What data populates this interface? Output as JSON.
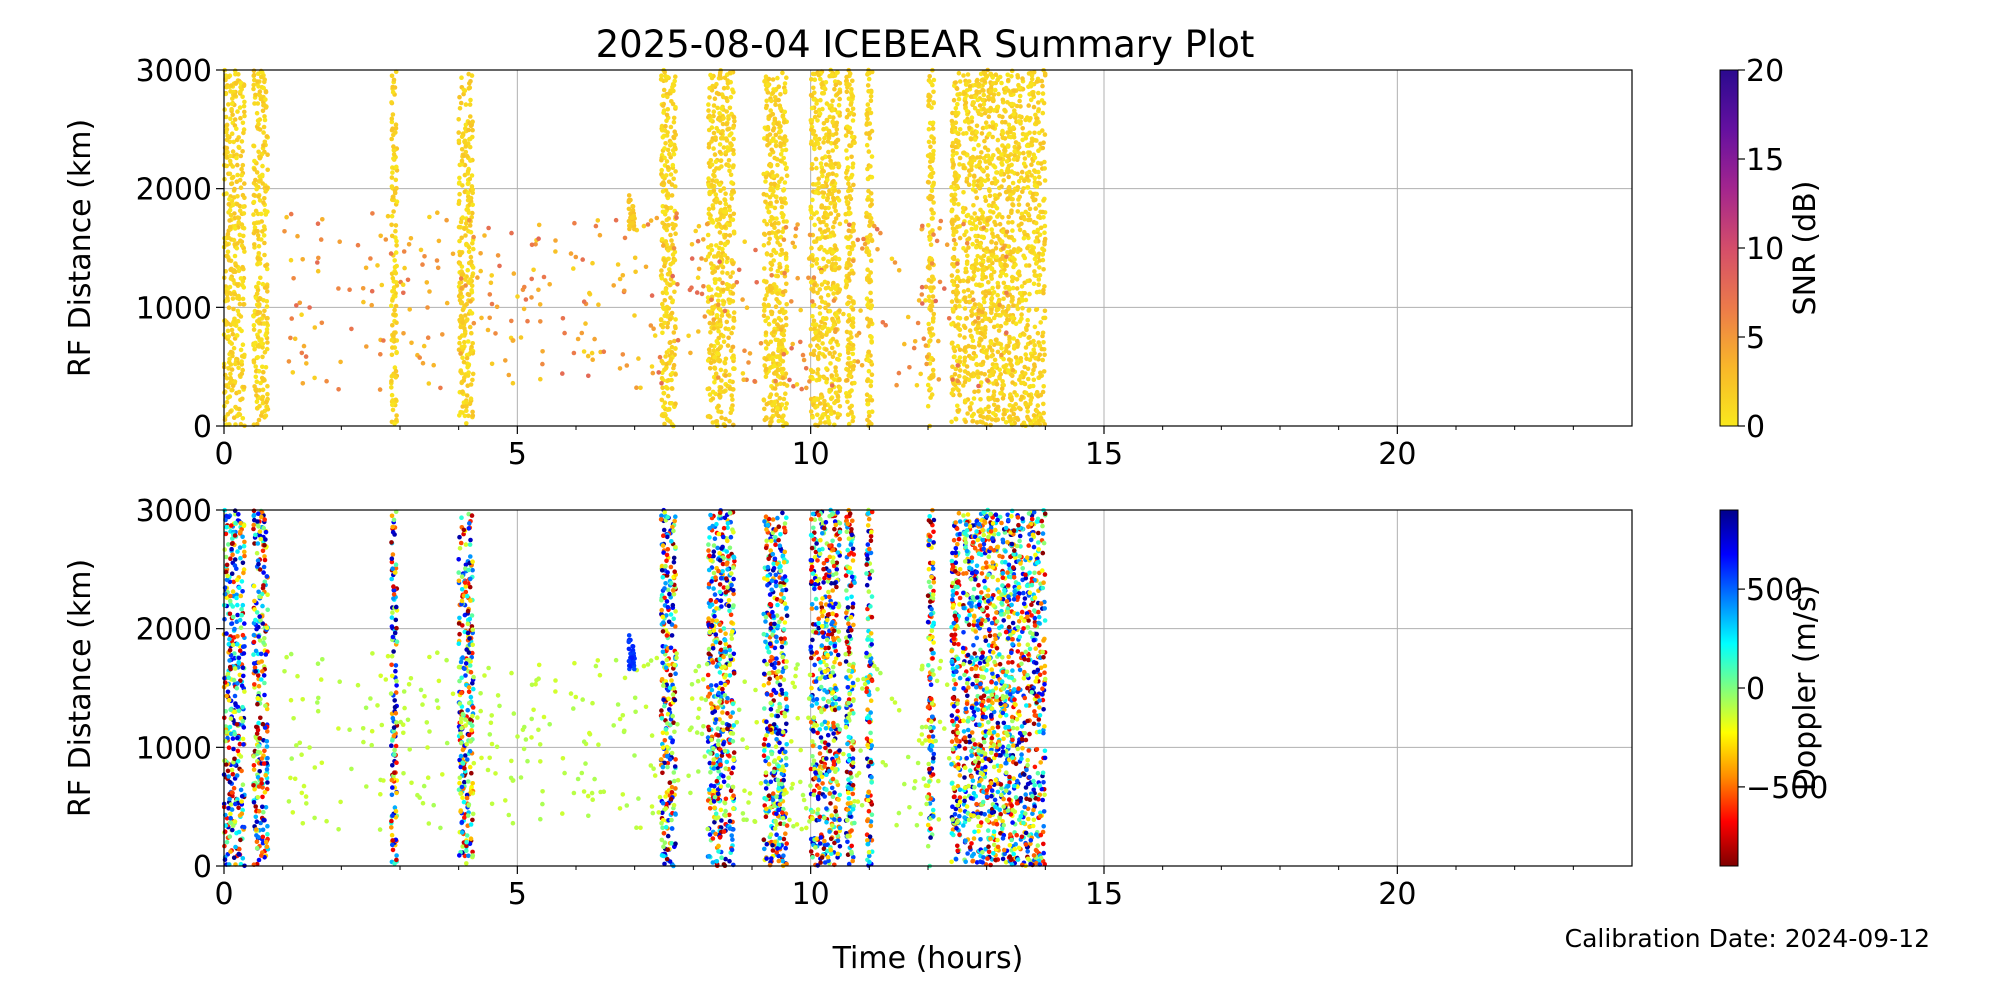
{
  "figure": {
    "title": "2025-08-04 ICEBEAR Summary Plot",
    "footnote": "Calibration Date: 2024-09-12",
    "shared_xlabel": "Time (hours)"
  },
  "chart_data": [
    {
      "type": "scatter",
      "panel": "top",
      "xlabel": "Time (hours)",
      "ylabel": "RF Distance (km)",
      "xlim": [
        0,
        24
      ],
      "ylim": [
        0,
        3000
      ],
      "xticks": [
        0,
        5,
        10,
        15,
        20
      ],
      "yticks": [
        0,
        1000,
        2000,
        3000
      ],
      "grid": true,
      "color_by": "SNR",
      "colorbar": {
        "label": "SNR (dB)",
        "range": [
          0,
          20
        ],
        "ticks": [
          0,
          5,
          10,
          15,
          20
        ],
        "colormap": [
          "#f9e81d",
          "#f8b62a",
          "#ec7a4a",
          "#d44d6a",
          "#a3258e",
          "#6510a0",
          "#2a0a8f"
        ]
      },
      "activity_bands_hours": [
        [
          0.0,
          0.35
        ],
        [
          0.5,
          0.75
        ],
        [
          2.85,
          2.95
        ],
        [
          4.0,
          4.25
        ],
        [
          7.45,
          7.7
        ],
        [
          8.25,
          8.7
        ],
        [
          9.2,
          9.6
        ],
        [
          10.0,
          10.5
        ],
        [
          10.6,
          10.75
        ],
        [
          10.95,
          11.05
        ],
        [
          12.0,
          12.1
        ],
        [
          12.4,
          12.55
        ],
        [
          12.6,
          14.0
        ]
      ],
      "description_note": "Dense vertical streaks of low-SNR (yellow) echoes spanning 0-3000 km during active hours; scattered higher-SNR (orange/red) echoes between 300-1800 km from ~2 to 13 hours."
    },
    {
      "type": "scatter",
      "panel": "bottom",
      "xlabel": "Time (hours)",
      "ylabel": "RF Distance (km)",
      "xlim": [
        0,
        24
      ],
      "ylim": [
        0,
        3000
      ],
      "xticks": [
        0,
        5,
        10,
        15,
        20
      ],
      "yticks": [
        0,
        1000,
        2000,
        3000
      ],
      "grid": true,
      "color_by": "Doppler",
      "colorbar": {
        "label": "Doppler (m/s)",
        "range": [
          -900,
          900
        ],
        "ticks": [
          -500,
          0,
          500
        ],
        "tick_labels": [
          "−500",
          "0",
          "500"
        ],
        "colormap": [
          "#7f0000",
          "#ff0000",
          "#ff8c00",
          "#ffff00",
          "#7fff7f",
          "#00ffff",
          "#0080ff",
          "#0000ff",
          "#00008b"
        ]
      },
      "activity_bands_hours": [
        [
          0.0,
          0.35
        ],
        [
          0.5,
          0.75
        ],
        [
          2.85,
          2.95
        ],
        [
          4.0,
          4.25
        ],
        [
          7.45,
          7.7
        ],
        [
          8.25,
          8.7
        ],
        [
          9.2,
          9.6
        ],
        [
          10.0,
          10.5
        ],
        [
          10.6,
          10.75
        ],
        [
          10.95,
          11.05
        ],
        [
          12.0,
          12.1
        ],
        [
          12.4,
          12.55
        ],
        [
          12.6,
          14.0
        ]
      ],
      "description_note": "Same echoes colored by Doppler velocity; streaks show mixed red/yellow/blue noise, scattered mid-range echoes are mostly near -100 m/s (light green), cluster near 7 h at ~1800 km is blue (~+600 m/s)."
    }
  ]
}
